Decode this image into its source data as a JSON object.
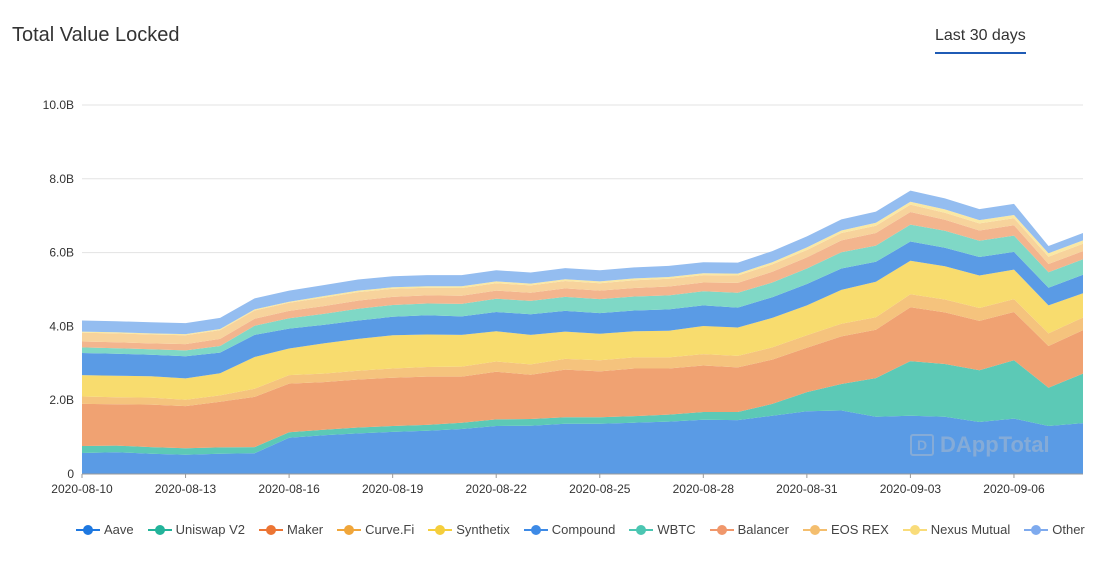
{
  "header": {
    "title": "Total Value Locked",
    "range_label": "Last 30 days"
  },
  "watermark": {
    "text": "DAppTotal"
  },
  "colors": {
    "Aave": "#5a9be5",
    "Uniswap V2": "#5cc9b6",
    "Maker": "#f0a272",
    "Curve.Fi": "#f5c37d",
    "Synthetix": "#f8dc6e",
    "Compound": "#5a9be5",
    "WBTC": "#7fd8c6",
    "Balancer": "#f3b58e",
    "EOS REX": "#f7d39c",
    "Nexus Mutual": "#fae8a4",
    "Other": "#94bdf0"
  },
  "legend_colors": {
    "Aave": "#1e78e0",
    "Uniswap V2": "#23b39a",
    "Maker": "#ec7534",
    "Curve.Fi": "#f0a63a",
    "Synthetix": "#f5ce3c",
    "Compound": "#3d8ae6",
    "WBTC": "#4cc6b2",
    "Balancer": "#f0976b",
    "EOS REX": "#f4be6e",
    "Nexus Mutual": "#f9dc7a",
    "Other": "#7eaaee"
  },
  "chart_data": {
    "type": "area",
    "stacked": true,
    "title": "Total Value Locked",
    "x": [
      "2020-08-10",
      "2020-08-11",
      "2020-08-12",
      "2020-08-13",
      "2020-08-14",
      "2020-08-15",
      "2020-08-16",
      "2020-08-17",
      "2020-08-18",
      "2020-08-19",
      "2020-08-20",
      "2020-08-21",
      "2020-08-22",
      "2020-08-23",
      "2020-08-24",
      "2020-08-25",
      "2020-08-26",
      "2020-08-27",
      "2020-08-28",
      "2020-08-29",
      "2020-08-30",
      "2020-08-31",
      "2020-09-01",
      "2020-09-02",
      "2020-09-03",
      "2020-09-04",
      "2020-09-05",
      "2020-09-06",
      "2020-09-07",
      "2020-09-08"
    ],
    "xticks": [
      "2020-08-10",
      "2020-08-13",
      "2020-08-16",
      "2020-08-19",
      "2020-08-22",
      "2020-08-25",
      "2020-08-28",
      "2020-08-31",
      "2020-09-03",
      "2020-09-06"
    ],
    "yticks": [
      0,
      2,
      4,
      6,
      8,
      10
    ],
    "ytick_labels": [
      "0",
      "2.0B",
      "4.0B",
      "6.0B",
      "8.0B",
      "10.0B"
    ],
    "ylim": [
      0,
      10
    ],
    "yunit": "B",
    "grid": true,
    "legend_position": "bottom",
    "series": [
      {
        "name": "Aave",
        "values": [
          0.57,
          0.59,
          0.55,
          0.52,
          0.55,
          0.56,
          0.98,
          1.05,
          1.1,
          1.14,
          1.17,
          1.22,
          1.3,
          1.31,
          1.36,
          1.36,
          1.39,
          1.42,
          1.47,
          1.46,
          1.58,
          1.7,
          1.72,
          1.55,
          1.58,
          1.55,
          1.41,
          1.5,
          1.3,
          1.38
        ]
      },
      {
        "name": "Uniswap V2",
        "values": [
          0.19,
          0.18,
          0.18,
          0.18,
          0.17,
          0.17,
          0.15,
          0.15,
          0.16,
          0.16,
          0.16,
          0.17,
          0.18,
          0.18,
          0.18,
          0.18,
          0.18,
          0.19,
          0.21,
          0.22,
          0.32,
          0.52,
          0.72,
          1.05,
          1.48,
          1.43,
          1.4,
          1.58,
          1.04,
          1.34
        ]
      },
      {
        "name": "Maker",
        "values": [
          1.14,
          1.12,
          1.15,
          1.14,
          1.24,
          1.36,
          1.32,
          1.29,
          1.3,
          1.31,
          1.31,
          1.25,
          1.29,
          1.2,
          1.29,
          1.24,
          1.29,
          1.25,
          1.26,
          1.21,
          1.2,
          1.2,
          1.29,
          1.31,
          1.46,
          1.4,
          1.34,
          1.31,
          1.13,
          1.18
        ]
      },
      {
        "name": "Curve.Fi",
        "values": [
          0.2,
          0.19,
          0.19,
          0.17,
          0.17,
          0.22,
          0.23,
          0.23,
          0.24,
          0.25,
          0.26,
          0.27,
          0.28,
          0.28,
          0.29,
          0.3,
          0.3,
          0.3,
          0.31,
          0.31,
          0.33,
          0.34,
          0.34,
          0.34,
          0.35,
          0.35,
          0.35,
          0.35,
          0.34,
          0.34
        ]
      },
      {
        "name": "Synthetix",
        "values": [
          0.58,
          0.58,
          0.58,
          0.58,
          0.6,
          0.86,
          0.72,
          0.82,
          0.86,
          0.9,
          0.88,
          0.86,
          0.82,
          0.8,
          0.74,
          0.72,
          0.71,
          0.72,
          0.76,
          0.77,
          0.8,
          0.81,
          0.92,
          0.96,
          0.91,
          0.9,
          0.88,
          0.8,
          0.76,
          0.66
        ]
      },
      {
        "name": "Compound",
        "values": [
          0.6,
          0.6,
          0.58,
          0.6,
          0.56,
          0.6,
          0.54,
          0.5,
          0.5,
          0.5,
          0.52,
          0.5,
          0.52,
          0.56,
          0.56,
          0.56,
          0.56,
          0.58,
          0.56,
          0.54,
          0.56,
          0.58,
          0.58,
          0.54,
          0.52,
          0.5,
          0.5,
          0.48,
          0.48,
          0.5
        ]
      },
      {
        "name": "WBTC",
        "values": [
          0.15,
          0.15,
          0.15,
          0.16,
          0.18,
          0.25,
          0.28,
          0.3,
          0.32,
          0.32,
          0.32,
          0.34,
          0.36,
          0.36,
          0.38,
          0.38,
          0.38,
          0.38,
          0.38,
          0.4,
          0.4,
          0.42,
          0.44,
          0.44,
          0.46,
          0.46,
          0.44,
          0.44,
          0.42,
          0.42
        ]
      },
      {
        "name": "Balancer",
        "values": [
          0.16,
          0.16,
          0.16,
          0.17,
          0.19,
          0.19,
          0.2,
          0.21,
          0.22,
          0.22,
          0.22,
          0.22,
          0.22,
          0.22,
          0.23,
          0.23,
          0.23,
          0.24,
          0.24,
          0.27,
          0.29,
          0.3,
          0.32,
          0.34,
          0.34,
          0.3,
          0.28,
          0.28,
          0.22,
          0.22
        ]
      },
      {
        "name": "EOS REX",
        "values": [
          0.24,
          0.24,
          0.24,
          0.24,
          0.24,
          0.22,
          0.22,
          0.23,
          0.23,
          0.22,
          0.21,
          0.21,
          0.2,
          0.2,
          0.2,
          0.2,
          0.21,
          0.21,
          0.2,
          0.2,
          0.2,
          0.2,
          0.2,
          0.2,
          0.2,
          0.19,
          0.19,
          0.19,
          0.2,
          0.2
        ]
      },
      {
        "name": "Nexus Mutual",
        "values": [
          0.03,
          0.03,
          0.03,
          0.03,
          0.03,
          0.03,
          0.03,
          0.04,
          0.04,
          0.04,
          0.04,
          0.05,
          0.05,
          0.05,
          0.05,
          0.05,
          0.05,
          0.05,
          0.05,
          0.05,
          0.06,
          0.07,
          0.07,
          0.08,
          0.08,
          0.09,
          0.09,
          0.09,
          0.09,
          0.09
        ]
      },
      {
        "name": "Other",
        "values": [
          0.3,
          0.3,
          0.3,
          0.3,
          0.3,
          0.3,
          0.3,
          0.3,
          0.3,
          0.3,
          0.3,
          0.3,
          0.3,
          0.3,
          0.3,
          0.3,
          0.3,
          0.3,
          0.3,
          0.3,
          0.3,
          0.3,
          0.3,
          0.3,
          0.3,
          0.3,
          0.3,
          0.3,
          0.2,
          0.2
        ]
      }
    ]
  }
}
